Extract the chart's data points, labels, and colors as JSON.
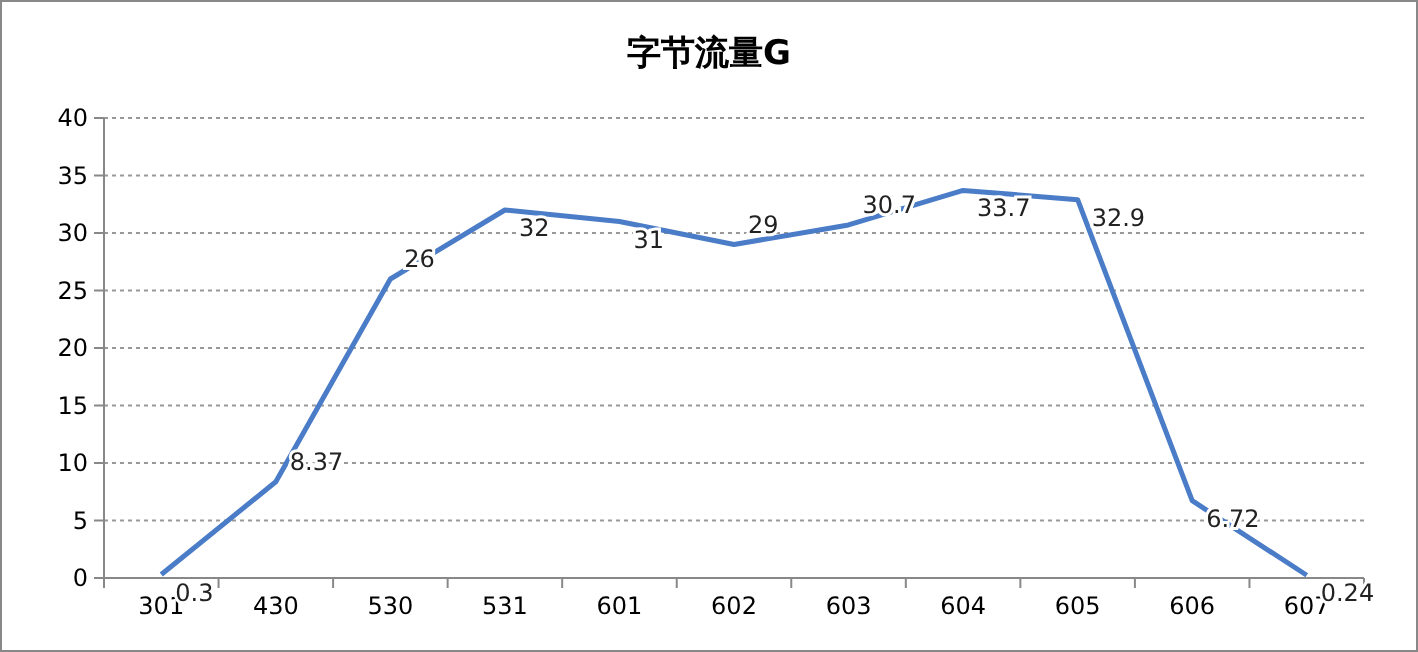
{
  "chart_data": {
    "type": "line",
    "title": "字节流量G",
    "categories": [
      "301",
      "430",
      "530",
      "531",
      "601",
      "602",
      "603",
      "604",
      "605",
      "606",
      "607"
    ],
    "series": [
      {
        "color": "#4a7cc7",
        "values": [
          0.3,
          8.37,
          26,
          32,
          31,
          29,
          30.7,
          33.7,
          32.9,
          6.72,
          0.24
        ]
      }
    ],
    "ylim": [
      0,
      40
    ],
    "yticks": [
      0,
      5,
      10,
      15,
      20,
      25,
      30,
      35,
      40
    ],
    "grid": "y",
    "data_labels": true,
    "marker": "none",
    "line_style": "solid"
  }
}
